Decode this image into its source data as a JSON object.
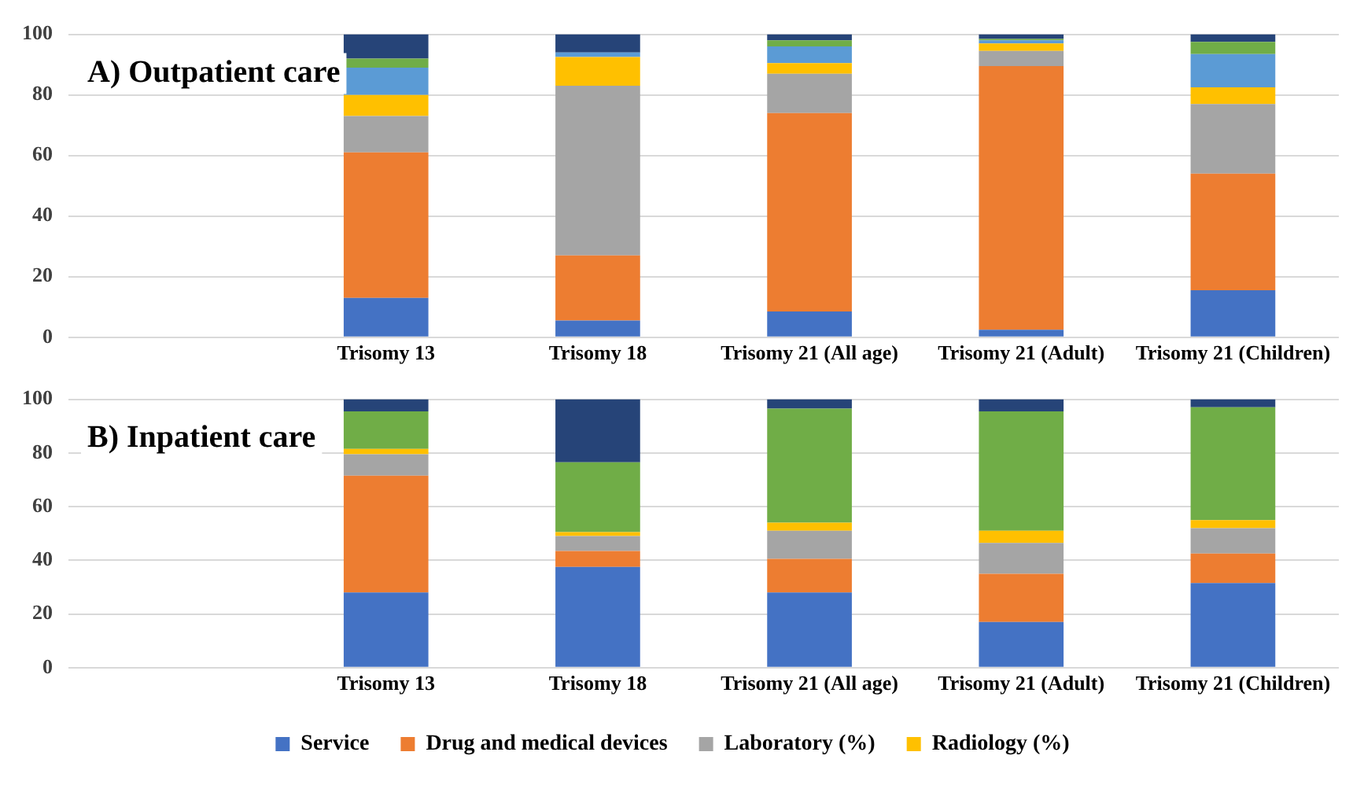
{
  "chart_data": [
    {
      "type": "bar",
      "title": "A) Outpatient care",
      "stacked": true,
      "categories": [
        null,
        "Trisomy 13",
        "Trisomy 18",
        "Trisomy 21 (All age)",
        "Trisomy 21 (Adult)",
        "Trisomy 21 (Children)"
      ],
      "ylim": [
        0,
        100
      ],
      "yticks": [
        0,
        20,
        40,
        60,
        80,
        100
      ],
      "grid": "y",
      "legend": false,
      "series": [
        {
          "color": "#4472c4",
          "values": [
            null,
            13,
            5.5,
            8.5,
            2.5,
            15.5
          ]
        },
        {
          "color": "#ed7d31",
          "values": [
            null,
            48,
            21.5,
            65.5,
            87,
            38.5
          ]
        },
        {
          "color": "#a5a5a5",
          "values": [
            null,
            12,
            56,
            13,
            5,
            23
          ]
        },
        {
          "color": "#ffc000",
          "values": [
            null,
            7,
            9.5,
            3.5,
            2.5,
            5.5
          ]
        },
        {
          "color": "#5b9bd5",
          "values": [
            null,
            9,
            1.5,
            5.5,
            1,
            11
          ]
        },
        {
          "color": "#70ad47",
          "values": [
            null,
            3,
            0,
            2,
            0.5,
            4
          ]
        },
        {
          "color": "#264478",
          "values": [
            null,
            8,
            6,
            2,
            1.5,
            2.5
          ]
        }
      ]
    },
    {
      "type": "bar",
      "title": "B) Inpatient care",
      "stacked": true,
      "categories": [
        null,
        "Trisomy 13",
        "Trisomy 18",
        "Trisomy 21 (All age)",
        "Trisomy 21 (Adult)",
        "Trisomy 21 (Children)"
      ],
      "ylim": [
        0,
        100
      ],
      "yticks": [
        0,
        20,
        40,
        60,
        80,
        100
      ],
      "grid": "y",
      "legend": "bottom",
      "series": [
        {
          "name": "Service",
          "color": "#4472c4",
          "values": [
            null,
            28,
            37.5,
            28,
            17,
            31.5
          ]
        },
        {
          "name": "Drug and medical devices",
          "color": "#ed7d31",
          "values": [
            null,
            43.5,
            6,
            12.5,
            18,
            11
          ]
        },
        {
          "name": "Laboratory (%)",
          "color": "#a5a5a5",
          "values": [
            null,
            8,
            5.5,
            10.5,
            11.5,
            9.5
          ]
        },
        {
          "name": "Radiology (%)",
          "color": "#ffc000",
          "values": [
            null,
            2,
            1.5,
            3,
            4.5,
            3
          ]
        },
        {
          "color": "#5b9bd5",
          "values": [
            null,
            0,
            0,
            0,
            0,
            0
          ]
        },
        {
          "color": "#70ad47",
          "values": [
            null,
            14,
            26,
            42.5,
            44.5,
            42
          ]
        },
        {
          "color": "#264478",
          "values": [
            null,
            4.5,
            23.5,
            3.5,
            4.5,
            3
          ]
        }
      ]
    }
  ]
}
